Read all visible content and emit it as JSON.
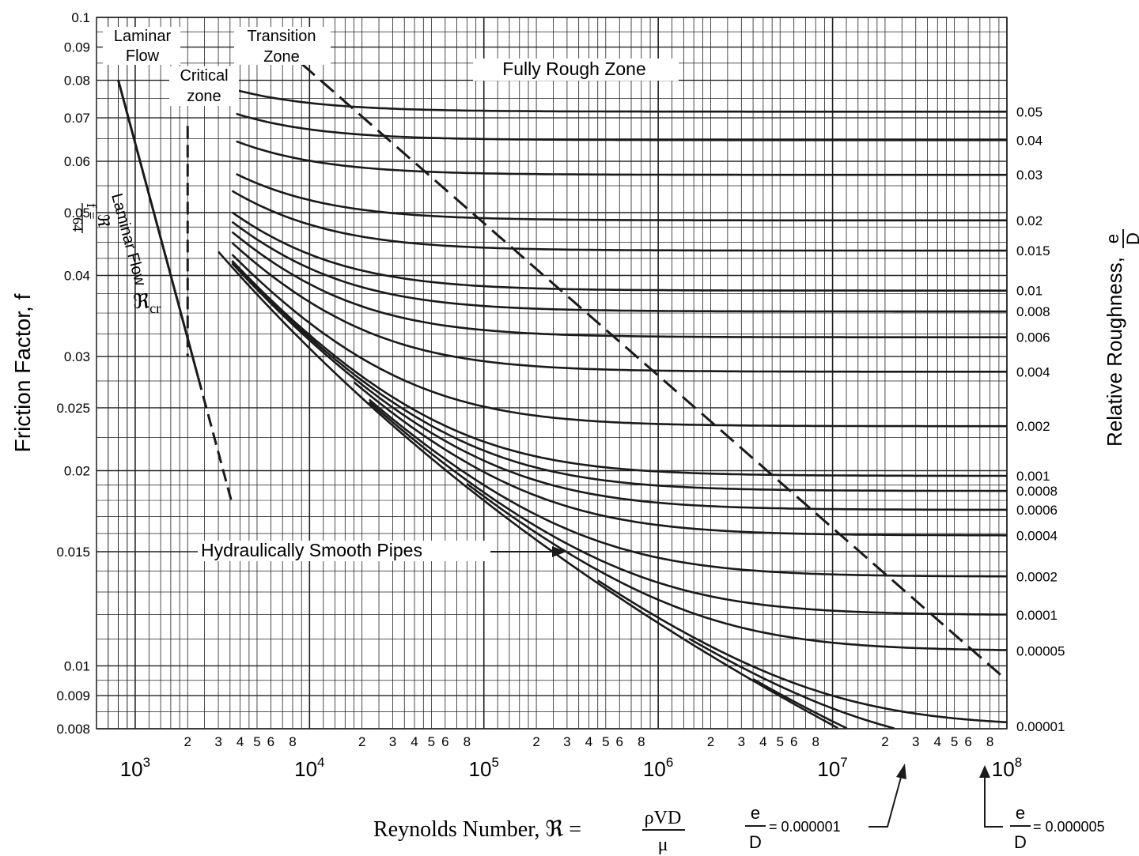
{
  "chart_data": {
    "type": "line",
    "title": "",
    "xlabel": "Reynolds Number, ℜ = ρVD / μ",
    "xlabel_parts": {
      "prefix": "Reynolds Number, ℜ =",
      "num": "ρVD",
      "den": "μ"
    },
    "ylabel_left": "Friction Factor, f",
    "ylabel_right": "Relative Roughness,",
    "ylabel_right_frac": {
      "num": "e",
      "den": "D"
    },
    "xscale": "log",
    "yscale": "log",
    "xlim": [
      600,
      100000000
    ],
    "ylim": [
      0.008,
      0.1
    ],
    "grid": true,
    "x_decade_labels": [
      {
        "x": 1000,
        "base": "10",
        "exp": "3"
      },
      {
        "x": 10000,
        "base": "10",
        "exp": "4"
      },
      {
        "x": 100000,
        "base": "10",
        "exp": "5"
      },
      {
        "x": 1000000,
        "base": "10",
        "exp": "6"
      },
      {
        "x": 10000000,
        "base": "10",
        "exp": "7"
      },
      {
        "x": 100000000,
        "base": "10",
        "exp": "8"
      }
    ],
    "x_minor_labels": [
      {
        "x": 2000,
        "label": "2"
      },
      {
        "x": 3000,
        "label": "3"
      },
      {
        "x": 4000,
        "label": "4"
      },
      {
        "x": 5000,
        "label": "5"
      },
      {
        "x": 6000,
        "label": "6"
      },
      {
        "x": 8000,
        "label": "8"
      },
      {
        "x": 20000,
        "label": "2"
      },
      {
        "x": 30000,
        "label": "3"
      },
      {
        "x": 40000,
        "label": "4"
      },
      {
        "x": 50000,
        "label": "5"
      },
      {
        "x": 60000,
        "label": "6"
      },
      {
        "x": 80000,
        "label": "8"
      },
      {
        "x": 200000,
        "label": "2"
      },
      {
        "x": 300000,
        "label": "3"
      },
      {
        "x": 400000,
        "label": "4"
      },
      {
        "x": 500000,
        "label": "5"
      },
      {
        "x": 600000,
        "label": "6"
      },
      {
        "x": 800000,
        "label": "8"
      },
      {
        "x": 2000000,
        "label": "2"
      },
      {
        "x": 3000000,
        "label": "3"
      },
      {
        "x": 4000000,
        "label": "4"
      },
      {
        "x": 5000000,
        "label": "5"
      },
      {
        "x": 6000000,
        "label": "6"
      },
      {
        "x": 8000000,
        "label": "8"
      },
      {
        "x": 20000000,
        "label": "2"
      },
      {
        "x": 30000000,
        "label": "3"
      },
      {
        "x": 40000000,
        "label": "4"
      },
      {
        "x": 50000000,
        "label": "5"
      },
      {
        "x": 60000000,
        "label": "6"
      },
      {
        "x": 80000000,
        "label": "8"
      }
    ],
    "y_tick_labels": [
      {
        "y": 0.1,
        "label": "0.1"
      },
      {
        "y": 0.09,
        "label": "0.09"
      },
      {
        "y": 0.08,
        "label": "0.08"
      },
      {
        "y": 0.07,
        "label": "0.07"
      },
      {
        "y": 0.06,
        "label": "0.06"
      },
      {
        "y": 0.05,
        "label": "0.05"
      },
      {
        "y": 0.04,
        "label": "0.04"
      },
      {
        "y": 0.03,
        "label": "0.03"
      },
      {
        "y": 0.025,
        "label": "0.025"
      },
      {
        "y": 0.02,
        "label": "0.02"
      },
      {
        "y": 0.015,
        "label": "0.015"
      },
      {
        "y": 0.01,
        "label": "0.01"
      },
      {
        "y": 0.009,
        "label": "0.009"
      },
      {
        "y": 0.008,
        "label": "0.008"
      }
    ],
    "series": [
      {
        "name": "0.05",
        "eps": 0.05,
        "label": "0.05"
      },
      {
        "name": "0.04",
        "eps": 0.04,
        "label": "0.04"
      },
      {
        "name": "0.03",
        "eps": 0.03,
        "label": "0.03"
      },
      {
        "name": "0.02",
        "eps": 0.02,
        "label": "0.02"
      },
      {
        "name": "0.015",
        "eps": 0.015,
        "label": "0.015"
      },
      {
        "name": "0.01",
        "eps": 0.01,
        "label": "0.01"
      },
      {
        "name": "0.008",
        "eps": 0.008,
        "label": "0.008"
      },
      {
        "name": "0.006",
        "eps": 0.006,
        "label": "0.006"
      },
      {
        "name": "0.004",
        "eps": 0.004,
        "label": "0.004"
      },
      {
        "name": "0.002",
        "eps": 0.002,
        "label": "0.002"
      },
      {
        "name": "0.001",
        "eps": 0.001,
        "label": "0.001"
      },
      {
        "name": "0.0008",
        "eps": 0.0008,
        "label": "0.0008"
      },
      {
        "name": "0.0006",
        "eps": 0.0006,
        "label": "0.0006"
      },
      {
        "name": "0.0004",
        "eps": 0.0004,
        "label": "0.0004"
      },
      {
        "name": "0.0002",
        "eps": 0.0002,
        "label": "0.0002"
      },
      {
        "name": "0.0001",
        "eps": 0.0001,
        "label": "0.0001"
      },
      {
        "name": "0.00005",
        "eps": 5e-05,
        "label": "0.00005"
      },
      {
        "name": "0.00001",
        "eps": 1e-05,
        "label": "0.00001"
      },
      {
        "name": "0.000005",
        "eps": 5e-06,
        "label": ""
      },
      {
        "name": "0.000001",
        "eps": 1e-06,
        "label": ""
      }
    ],
    "smooth_pipe_curve": {
      "name": "Hydraulically Smooth Pipes",
      "x_range": [
        3000,
        25000000
      ]
    },
    "laminar_line": {
      "formula": "f = 64/ℜ",
      "x_range": [
        800,
        2300
      ],
      "dashed_extension_to": 3600
    },
    "critical_line": {
      "x": 2000,
      "y_range": [
        0.03,
        0.068
      ]
    },
    "transition_boundary": {
      "points": [
        [
          7000,
          0.09
        ],
        [
          100000000,
          0.0095
        ]
      ]
    },
    "annotations": [
      {
        "text": "Laminar",
        "pos": "top-left"
      },
      {
        "text": "Flow",
        "pos": "top-left"
      },
      {
        "text": "Critical",
        "pos": "upper-left"
      },
      {
        "text": "zone",
        "pos": "upper-left"
      },
      {
        "text": "Transition",
        "pos": "top"
      },
      {
        "text": "Zone",
        "pos": "top"
      },
      {
        "text": "Fully Rough Zone",
        "pos": "top"
      },
      {
        "text": "Laminar Flow",
        "pos": "left-rotated"
      },
      {
        "text": "ℜcr",
        "pos": "left"
      },
      {
        "text": "Hydraulically Smooth Pipes",
        "pos": "lower-middle"
      },
      {
        "text": "= 0.000001",
        "pos": "bottom-right",
        "frac": {
          "num": "e",
          "den": "D"
        }
      },
      {
        "text": "= 0.000005",
        "pos": "bottom-right",
        "frac": {
          "num": "e",
          "den": "D"
        }
      }
    ],
    "labels": {
      "laminar_top": "Laminar",
      "laminar_bottom": "Flow",
      "critical_top": "Critical",
      "critical_bottom": "zone",
      "transition_top": "Transition",
      "transition_bottom": "Zone",
      "fully_rough": "Fully Rough Zone",
      "laminar_rot": "Laminar Flow",
      "f_equals": "f =",
      "sixty_four": "64",
      "re_symbol": "ℜ",
      "re_cr": "ℜ",
      "re_cr_sub": "cr",
      "smooth_pipes": "Hydraulically Smooth Pipes",
      "ed_small_num": "e",
      "ed_small_den": "D",
      "ed_small_val": "= 0.000001",
      "ed_med_num": "e",
      "ed_med_den": "D",
      "ed_med_val": "= 0.000005"
    }
  }
}
